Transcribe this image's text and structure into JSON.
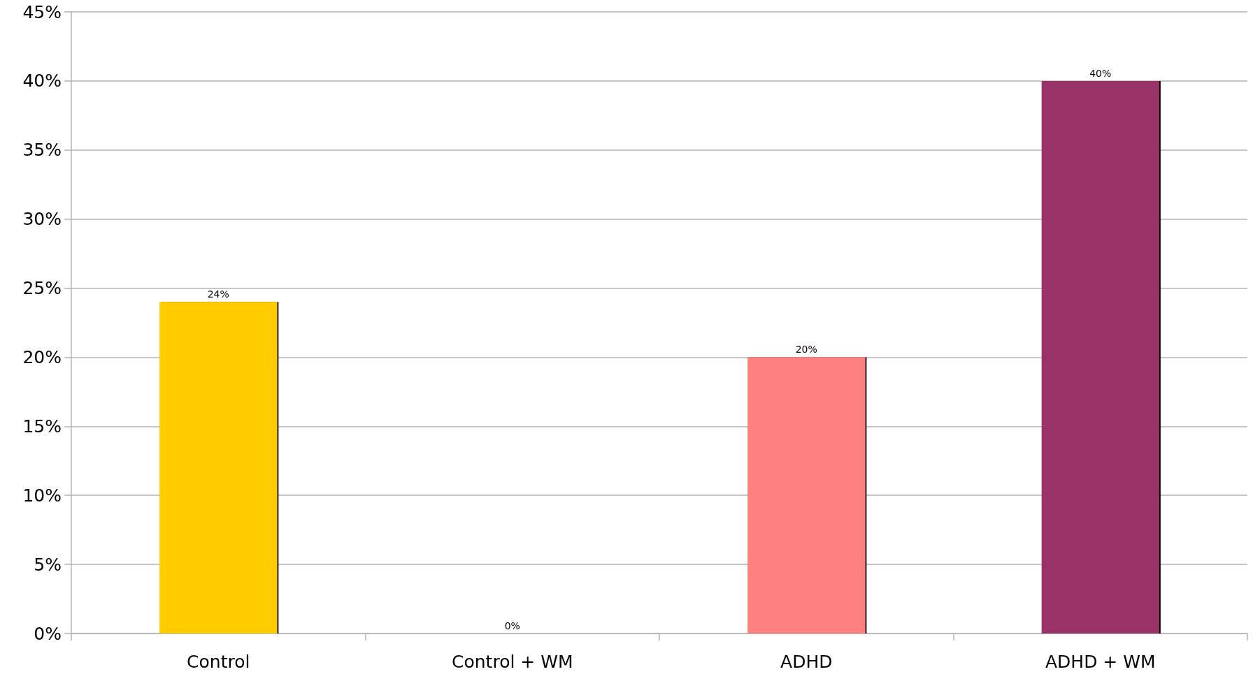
{
  "chart_data": {
    "type": "bar",
    "categories": [
      "Control",
      "Control + WM",
      "ADHD",
      "ADHD + WM"
    ],
    "values": [
      24,
      0,
      20,
      40
    ],
    "colors": [
      "#ffcc00",
      null,
      "#ff8080",
      "#993366"
    ],
    "value_labels": [
      "24%",
      "0%",
      "20%",
      "40%"
    ],
    "ylim": [
      0,
      45
    ],
    "yticks": [
      {
        "value": 0,
        "label": "0%"
      },
      {
        "value": 5,
        "label": "5%"
      },
      {
        "value": 10,
        "label": "10%"
      },
      {
        "value": 15,
        "label": "15%"
      },
      {
        "value": 20,
        "label": "20%"
      },
      {
        "value": 25,
        "label": "25%"
      },
      {
        "value": 30,
        "label": "30%"
      },
      {
        "value": 35,
        "label": "35%"
      },
      {
        "value": 40,
        "label": "40%"
      },
      {
        "value": 45,
        "label": "45%"
      }
    ],
    "grid": "y"
  }
}
